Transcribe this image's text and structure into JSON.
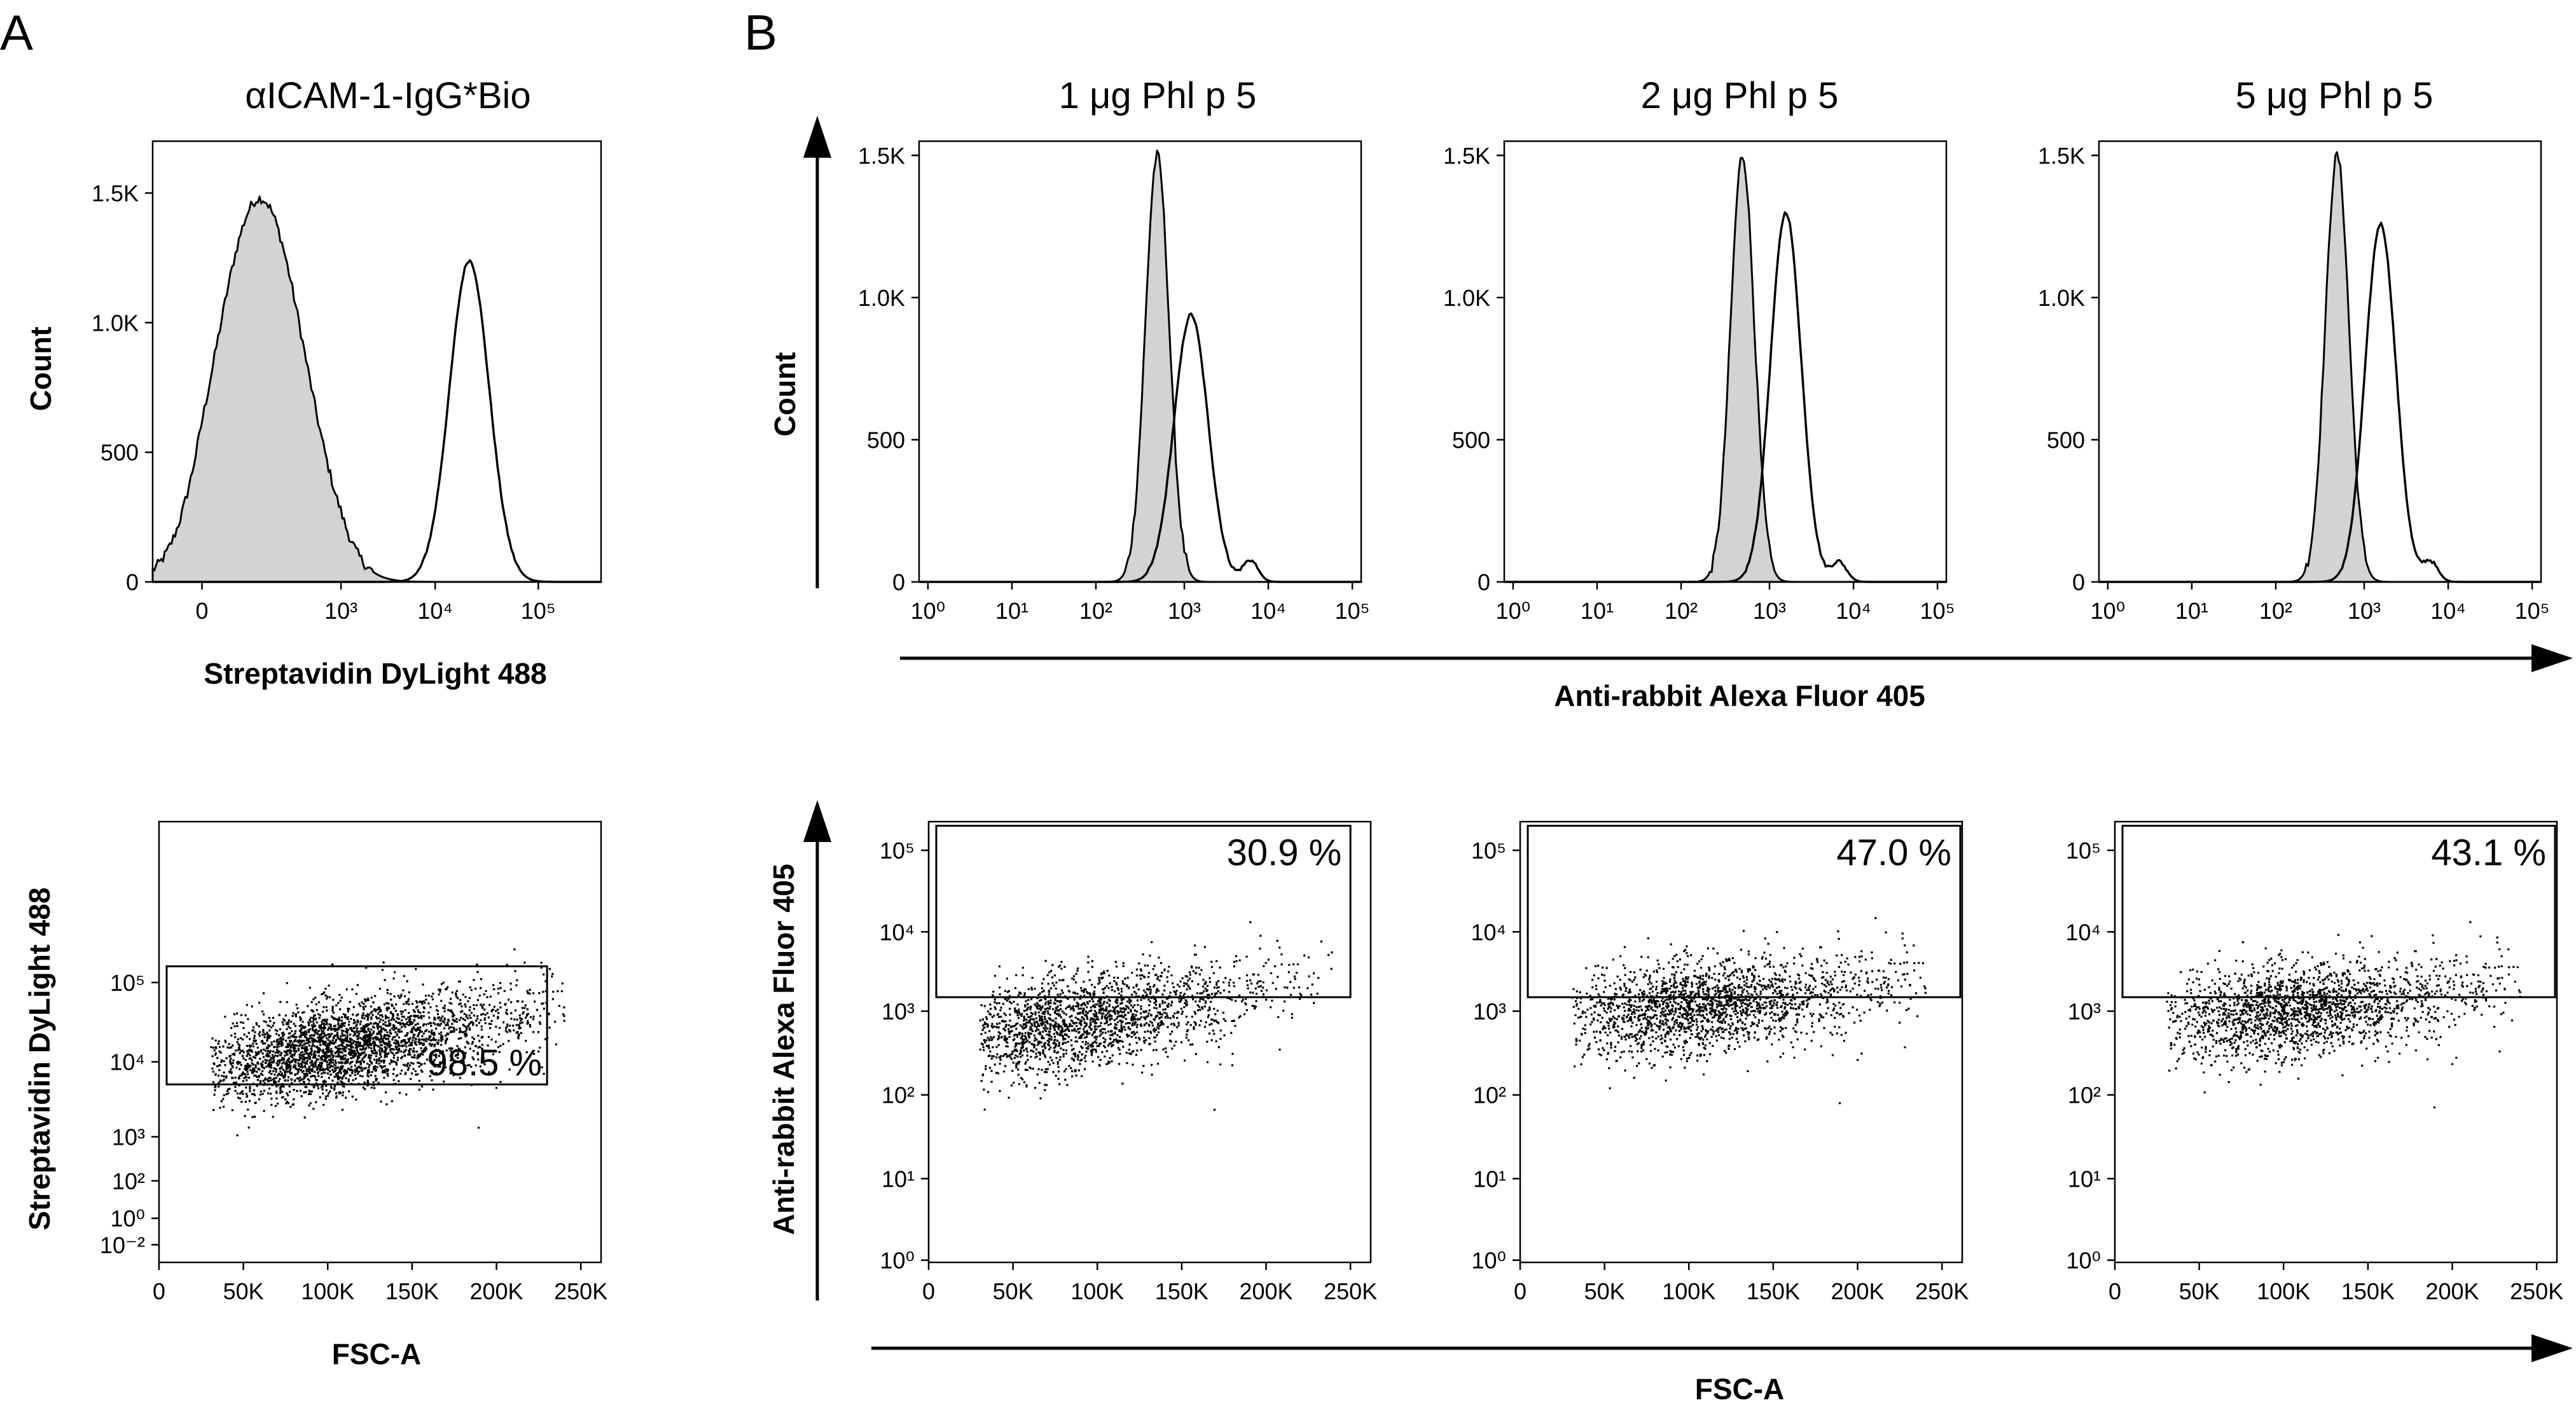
{
  "panel_labels": [
    "A",
    "B"
  ],
  "group_axis_labels": {
    "b_hist_x": "Anti-rabbit Alexa Fluor 405",
    "b_hist_y": "Count",
    "b_dot_x": "FSC-A",
    "b_dot_y": "Anti-rabbit Alexa Fluor 405"
  },
  "chart_data": [
    {
      "id": "A-hist",
      "type": "area",
      "title": "αICAM-1-IgG*Bio",
      "xlabel": "Streptavidin DyLight 488",
      "ylabel": "Count",
      "x_scale": "biexponential",
      "x_ticks": [
        "0",
        "10³",
        "10⁴",
        "10⁵"
      ],
      "y_ticks": [
        "0",
        "500",
        "1.0K",
        "1.5K"
      ],
      "ylim": [
        0,
        1700
      ],
      "series": [
        {
          "fill": "#d3d3d3",
          "peak_x": 200,
          "peak_count": 1480,
          "spread": 0.38
        },
        {
          "fill": "none",
          "peak_x": 20000,
          "peak_count": 1240,
          "spread": 0.2
        }
      ]
    },
    {
      "id": "A-dot",
      "type": "scatter",
      "xlabel": "FSC-A",
      "ylabel": "Streptavidin DyLight 488",
      "x_ticks": [
        "0",
        "50K",
        "100K",
        "150K",
        "200K",
        "250K"
      ],
      "y_ticks": [
        "10⁻²",
        "10⁰",
        "10²",
        "10³",
        "10⁴",
        "10⁵"
      ],
      "xlim": [
        0,
        262000
      ],
      "gate": {
        "x": [
          0,
          230000
        ],
        "y": [
          5000,
          160000
        ],
        "label": "98.5 %"
      },
      "cloud": {
        "center_fsc": 95000,
        "center_log": 4.15,
        "slope": 3.5e-06
      }
    },
    {
      "id": "B1-hist",
      "type": "area",
      "title": "1 μg Phl p 5",
      "x_ticks": [
        "10⁰",
        "10¹",
        "10²",
        "10³",
        "10⁴",
        "10⁵"
      ],
      "y_ticks": [
        "0",
        "500",
        "1.0K",
        "1.5K"
      ],
      "xlim": [
        1,
        100000
      ],
      "ylim": [
        0,
        1550
      ],
      "series": [
        {
          "fill": "#d3d3d3",
          "peak_x": 400,
          "peak_count": 1500,
          "spread": 0.14
        },
        {
          "fill": "none",
          "peak_x": 1000,
          "peak_count": 940,
          "spread": 0.2,
          "shoulder_x": 5000,
          "shoulder_count": 75
        }
      ]
    },
    {
      "id": "B2-hist",
      "type": "area",
      "title": "2 μg Phl p 5",
      "x_ticks": [
        "10⁰",
        "10¹",
        "10²",
        "10³",
        "10⁴",
        "10⁵"
      ],
      "y_ticks": [
        "0",
        "500",
        "1.0K",
        "1.5K"
      ],
      "xlim": [
        1,
        100000
      ],
      "ylim": [
        0,
        1550
      ],
      "series": [
        {
          "fill": "#d3d3d3",
          "peak_x": 400,
          "peak_count": 1500,
          "spread": 0.14
        },
        {
          "fill": "none",
          "peak_x": 1300,
          "peak_count": 1300,
          "spread": 0.18,
          "shoulder_x": 5500,
          "shoulder_count": 70
        }
      ]
    },
    {
      "id": "B3-hist",
      "type": "area",
      "title": "5 μg Phl p 5",
      "x_ticks": [
        "10⁰",
        "10¹",
        "10²",
        "10³",
        "10⁴",
        "10⁵"
      ],
      "y_ticks": [
        "0",
        "500",
        "1.0K",
        "1.5K"
      ],
      "xlim": [
        1,
        100000
      ],
      "ylim": [
        0,
        1550
      ],
      "series": [
        {
          "fill": "#d3d3d3",
          "peak_x": 400,
          "peak_count": 1500,
          "spread": 0.14
        },
        {
          "fill": "none",
          "peak_x": 1300,
          "peak_count": 1260,
          "spread": 0.18,
          "shoulder_x": 5000,
          "shoulder_count": 70
        }
      ]
    },
    {
      "id": "B1-dot",
      "type": "scatter",
      "x_ticks": [
        "0",
        "50K",
        "100K",
        "150K",
        "200K",
        "250K"
      ],
      "y_ticks": [
        "10⁰",
        "10¹",
        "10²",
        "10³",
        "10⁴",
        "10⁵"
      ],
      "xlim": [
        0,
        262000
      ],
      "gate": {
        "x": [
          0,
          250000
        ],
        "y": [
          1500,
          200000
        ],
        "label": "30.9 %"
      },
      "cloud": {
        "center_fsc": 75000,
        "center_log": 2.85,
        "slope": 3.5e-06
      }
    },
    {
      "id": "B2-dot",
      "type": "scatter",
      "x_ticks": [
        "0",
        "50K",
        "100K",
        "150K",
        "200K",
        "250K"
      ],
      "y_ticks": [
        "10⁰",
        "10¹",
        "10²",
        "10³",
        "10⁴",
        "10⁵"
      ],
      "xlim": [
        0,
        262000
      ],
      "gate": {
        "x": [
          0,
          262000
        ],
        "y": [
          1500,
          200000
        ],
        "label": "47.0 %"
      },
      "cloud": {
        "center_fsc": 95000,
        "center_log": 3.05,
        "slope": 2.2e-06
      }
    },
    {
      "id": "B3-dot",
      "type": "scatter",
      "x_ticks": [
        "0",
        "50K",
        "100K",
        "150K",
        "200K",
        "250K"
      ],
      "y_ticks": [
        "10⁰",
        "10¹",
        "10²",
        "10³",
        "10⁴",
        "10⁵"
      ],
      "xlim": [
        0,
        262000
      ],
      "gate": {
        "x": [
          0,
          262000
        ],
        "y": [
          1500,
          200000
        ],
        "label": "43.1 %"
      },
      "cloud": {
        "center_fsc": 95000,
        "center_log": 3.0,
        "slope": 2.2e-06
      }
    }
  ]
}
